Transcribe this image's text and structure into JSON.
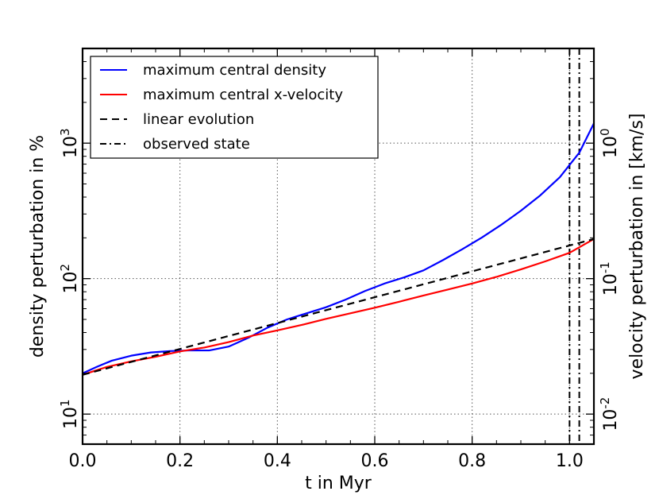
{
  "chart_data": {
    "type": "line",
    "title": "",
    "xlabel": "t in Myr",
    "ylabel": "density perturbation in %",
    "y2label": "velocity perturbation in [km/s]",
    "xlim": [
      0.0,
      1.05
    ],
    "ylim": [
      6,
      5000
    ],
    "y2lim": [
      0.006,
      5.0
    ],
    "xscale": "linear",
    "yscale": "log",
    "y2scale": "log",
    "grid": true,
    "legend_position": "top-left",
    "x_ticks": [
      {
        "value": 0.0,
        "label": "0.0"
      },
      {
        "value": 0.2,
        "label": "0.2"
      },
      {
        "value": 0.4,
        "label": "0.4"
      },
      {
        "value": 0.6,
        "label": "0.6"
      },
      {
        "value": 0.8,
        "label": "0.8"
      },
      {
        "value": 1.0,
        "label": "1.0"
      }
    ],
    "y_ticks": [
      {
        "value": 10,
        "base": "10",
        "exp": "1"
      },
      {
        "value": 100,
        "base": "10",
        "exp": "2"
      },
      {
        "value": 1000,
        "base": "10",
        "exp": "3"
      }
    ],
    "y2_ticks": [
      {
        "value": 0.01,
        "base": "10",
        "exp": "-2"
      },
      {
        "value": 0.1,
        "base": "10",
        "exp": "-1"
      },
      {
        "value": 1,
        "base": "10",
        "exp": "0"
      }
    ],
    "series": [
      {
        "name": "maximum central density",
        "color": "#0000ff",
        "style": "solid",
        "axis": "left",
        "x": [
          0.0,
          0.03,
          0.06,
          0.1,
          0.14,
          0.18,
          0.22,
          0.26,
          0.3,
          0.34,
          0.38,
          0.42,
          0.46,
          0.5,
          0.54,
          0.58,
          0.62,
          0.66,
          0.7,
          0.74,
          0.78,
          0.82,
          0.86,
          0.9,
          0.94,
          0.98,
          1.02,
          1.05
        ],
        "y": [
          20.0,
          22.4,
          24.8,
          27.0,
          28.5,
          29.2,
          29.5,
          29.5,
          31.5,
          36.5,
          43.5,
          50.0,
          55.5,
          61.5,
          70.0,
          81.0,
          92.0,
          102.0,
          115.0,
          137.0,
          165.0,
          201.0,
          250.0,
          317.0,
          412.0,
          560.0,
          850.0,
          1400.0
        ]
      },
      {
        "name": "maximum central x-velocity",
        "color": "#ff0000",
        "style": "solid",
        "axis": "left",
        "x": [
          0.0,
          0.05,
          0.1,
          0.15,
          0.2,
          0.25,
          0.3,
          0.35,
          0.4,
          0.45,
          0.5,
          0.55,
          0.6,
          0.65,
          0.7,
          0.75,
          0.8,
          0.85,
          0.9,
          0.95,
          1.0,
          1.05
        ],
        "y": [
          19.5,
          22.3,
          24.5,
          26.5,
          29.0,
          31.0,
          34.0,
          38.0,
          41.5,
          45.5,
          50.5,
          55.5,
          61.0,
          67.5,
          75.0,
          83.0,
          92.0,
          103.0,
          117.0,
          134.0,
          155.0,
          196.0
        ]
      },
      {
        "name": "linear evolution",
        "color": "#000000",
        "style": "dashed",
        "axis": "left",
        "x": [
          0.0,
          1.05
        ],
        "y": [
          19.5,
          196.0
        ]
      }
    ],
    "vlines": [
      {
        "name": "observed state",
        "x": 1.0,
        "style": "dashdot",
        "color": "#000000"
      },
      {
        "name": "observed state",
        "x": 1.02,
        "style": "dashdot",
        "color": "#000000"
      }
    ],
    "legend": [
      {
        "label": "maximum central density",
        "color": "#0000ff",
        "style": "solid"
      },
      {
        "label": "maximum central x-velocity",
        "color": "#ff0000",
        "style": "solid"
      },
      {
        "label": "linear evolution",
        "color": "#000000",
        "style": "dashed"
      },
      {
        "label": "observed state",
        "color": "#000000",
        "style": "dashdot"
      }
    ]
  }
}
